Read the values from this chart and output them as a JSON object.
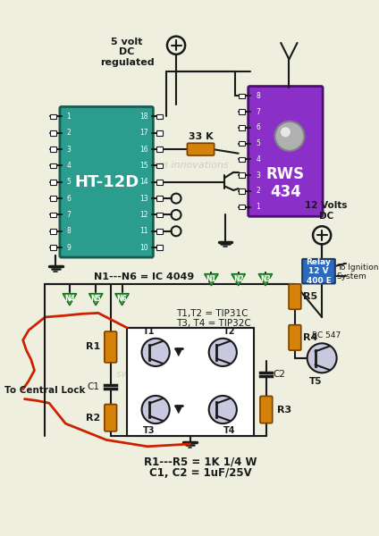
{
  "bg_color": "#efefdf",
  "teal_ic_color": "#2a9d8f",
  "purple_ic_color": "#8b2fc9",
  "orange_resistor_color": "#d4820a",
  "green_gate_color": "#4caf50",
  "blue_relay_color": "#2a6abf",
  "line_color": "#1a1a1a",
  "red_wire_color": "#cc2200",
  "text_color": "#1a1a1a",
  "watermark": "swagatam innovations",
  "labels": {
    "ic1": "HT-12D",
    "ic2": "RWS\n434",
    "vcc1": "5 volt\nDC\nregulated",
    "vcc2": "12 Volts\nDC",
    "resistor_33k": "33 K",
    "n1_n6": "N1---N6 = IC 4049",
    "t1t2": "T1,T2 = TIP31C",
    "t3t4": "T3, T4 = TIP32C",
    "r1_r5": "R1---R5 = 1K 1/4 W",
    "c1c2": "C1, C2 = 1uF/25V",
    "central_lock": "To Central Lock",
    "ignition": "To Ignition\nSystem",
    "relay_label": "Relay\n12 V\n400 E",
    "bc547": "BC 547",
    "t5_label": "T5"
  }
}
